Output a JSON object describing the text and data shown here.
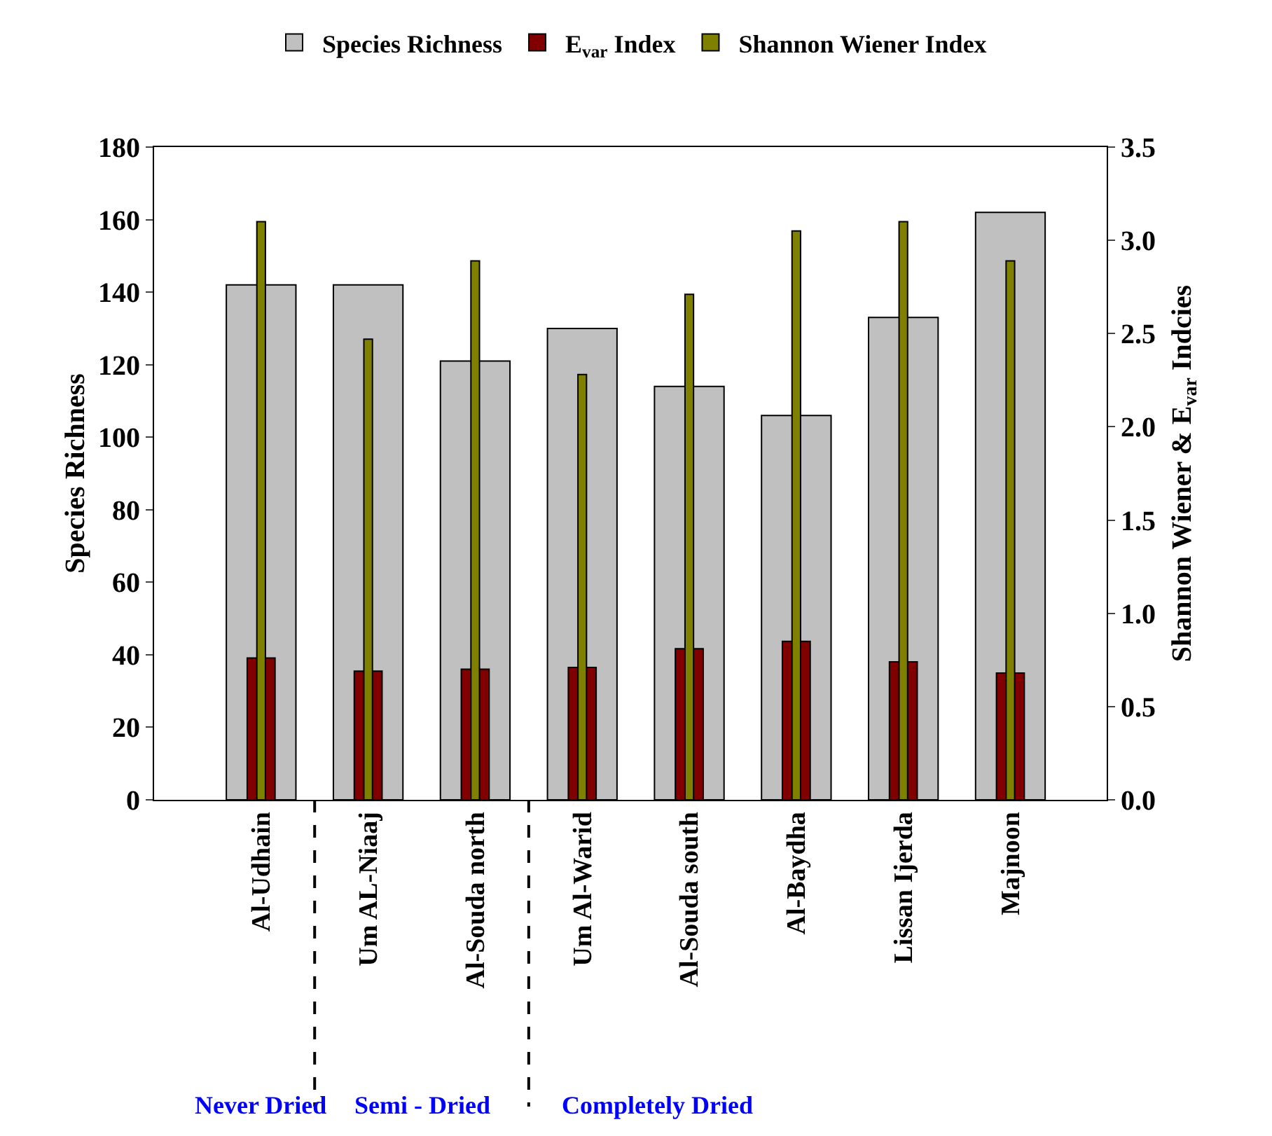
{
  "chart_data": {
    "type": "bar",
    "categories": [
      "Al-Udhain",
      "Um AL-Niaaj",
      "Al-Souda north",
      "Um Al-Warid",
      "Al-Souda south",
      "Al-Baydha",
      "Lissan Ijerda",
      "Majnoon"
    ],
    "series": [
      {
        "name": "Species Richness",
        "color": "#c0c0c0",
        "values": [
          142,
          142,
          121,
          130,
          114,
          106,
          133,
          162
        ]
      },
      {
        "name": "E$_{var}$ Index",
        "color": "#800000",
        "axis": "y2",
        "values": [
          0.76,
          0.69,
          0.7,
          0.71,
          0.81,
          0.85,
          0.74,
          0.68
        ]
      },
      {
        "name": "Shannon Wiener Index",
        "color": "#808000",
        "axis": "y2",
        "values": [
          3.1,
          2.47,
          2.89,
          2.28,
          2.71,
          3.05,
          3.1,
          2.89
        ]
      }
    ],
    "ylabel": "Species Richness",
    "y2label": "Shannon Wiener & E$_{var}$ Indcies",
    "ylim": [
      0,
      180
    ],
    "yticks": [
      0,
      20,
      40,
      60,
      80,
      100,
      120,
      140,
      160,
      180
    ],
    "y2lim": [
      0,
      3.5
    ],
    "y2ticks": [
      {
        "value": 0,
        "label": "0.0"
      },
      {
        "value": 0.5,
        "label": "0.5"
      },
      {
        "value": 1,
        "label": "1.0"
      },
      {
        "value": 1.5,
        "label": "1.5"
      },
      {
        "value": 2,
        "label": "2.0"
      },
      {
        "value": 2.5,
        "label": "2.5"
      },
      {
        "value": 3,
        "label": "3.0"
      },
      {
        "value": 3.5,
        "label": "3.5"
      }
    ],
    "annotations": [
      "Never Dried",
      "Semi - Dried",
      "Completely Dried"
    ],
    "grid": false,
    "legend": "top"
  }
}
